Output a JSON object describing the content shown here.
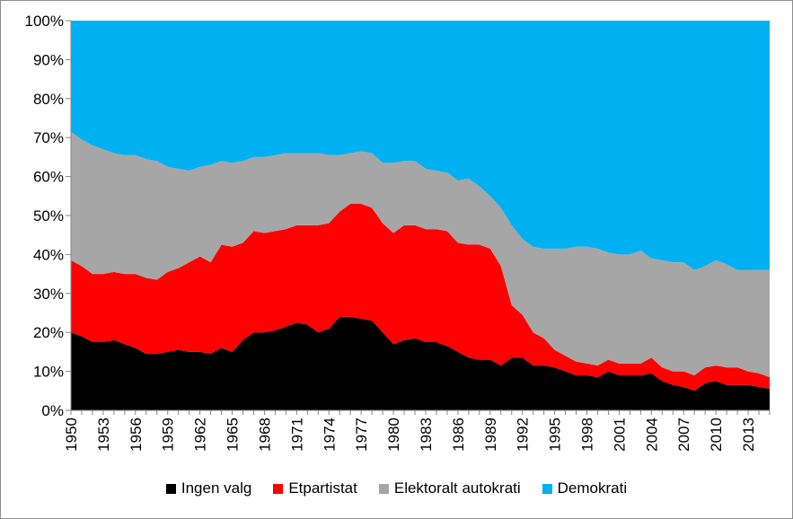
{
  "chart_data": {
    "type": "area",
    "stacked": true,
    "normalized": true,
    "x": [
      1950,
      1951,
      1952,
      1953,
      1954,
      1955,
      1956,
      1957,
      1958,
      1959,
      1960,
      1961,
      1962,
      1963,
      1964,
      1965,
      1966,
      1967,
      1968,
      1969,
      1970,
      1971,
      1972,
      1973,
      1974,
      1975,
      1976,
      1977,
      1978,
      1979,
      1980,
      1981,
      1982,
      1983,
      1984,
      1985,
      1986,
      1987,
      1988,
      1989,
      1990,
      1991,
      1992,
      1993,
      1994,
      1995,
      1996,
      1997,
      1998,
      1999,
      2000,
      2001,
      2002,
      2003,
      2004,
      2005,
      2006,
      2007,
      2008,
      2009,
      2010,
      2011,
      2012,
      2013,
      2014,
      2015
    ],
    "x_tick_labels": [
      "1950",
      "1953",
      "1956",
      "1959",
      "1962",
      "1965",
      "1968",
      "1971",
      "1974",
      "1977",
      "1980",
      "1983",
      "1986",
      "1989",
      "1992",
      "1995",
      "1998",
      "2001",
      "2004",
      "2007",
      "2010",
      "2013"
    ],
    "y_tick_labels": [
      "0%",
      "10%",
      "20%",
      "30%",
      "40%",
      "50%",
      "60%",
      "70%",
      "80%",
      "90%",
      "100%"
    ],
    "ylim": [
      0,
      100
    ],
    "grid": false,
    "legend_position": "bottom",
    "series": [
      {
        "name": "Ingen valg",
        "color": "#000000",
        "cumulative_top": [
          20,
          19,
          17.5,
          17.5,
          18,
          17,
          16,
          14.5,
          14.5,
          15,
          15.5,
          15,
          15,
          14.5,
          16,
          15,
          18,
          20,
          20,
          20.5,
          21.5,
          22.5,
          22,
          20,
          21,
          24,
          24,
          23.5,
          23,
          20,
          17,
          18,
          18.5,
          17.5,
          17.5,
          16.5,
          15,
          13.5,
          13,
          13,
          11.5,
          13.5,
          13.5,
          11.5,
          11.5,
          11,
          10,
          9,
          9,
          8.5,
          10,
          9,
          9,
          9,
          9.5,
          7.5,
          6.5,
          6,
          5,
          7,
          7.5,
          6.5,
          6.5,
          6.5,
          6,
          5.5
        ]
      },
      {
        "name": "Etpartistat",
        "color": "#ff0000",
        "cumulative_top": [
          38.5,
          37,
          35,
          35,
          35.5,
          35,
          35,
          34,
          33.5,
          35.5,
          36.5,
          38,
          39.5,
          38,
          42.5,
          42,
          43,
          46,
          45.5,
          46,
          46.5,
          47.5,
          47.5,
          47.5,
          48,
          51,
          53,
          53,
          52,
          48,
          45.5,
          47.5,
          47.5,
          46.5,
          46.5,
          46,
          43,
          42.5,
          42.5,
          41.5,
          37,
          27,
          24.5,
          20,
          18.5,
          15.5,
          14,
          12.5,
          12,
          11.5,
          13,
          12,
          12,
          12,
          13.5,
          11,
          10,
          10,
          9,
          11,
          11.5,
          11,
          11,
          10,
          9.5,
          8.5
        ]
      },
      {
        "name": "Elektoralt autokrati",
        "color": "#a6a6a6",
        "cumulative_top": [
          71.5,
          69.5,
          68,
          67,
          66,
          65.5,
          65.5,
          64.5,
          64,
          62.5,
          62,
          61.5,
          62.5,
          63,
          64,
          63.5,
          64,
          65,
          65,
          65.5,
          66,
          66,
          66,
          66,
          65.5,
          65.5,
          66,
          66.5,
          66,
          63.5,
          63.5,
          64,
          64,
          62,
          61.5,
          61,
          59,
          59.5,
          57.5,
          55,
          52,
          47.5,
          44,
          42,
          41.5,
          41.5,
          41.5,
          42,
          42,
          41.5,
          40.5,
          40,
          40,
          41,
          39,
          38.5,
          38,
          38,
          36,
          37,
          38.5,
          37.5,
          36,
          36,
          36,
          36
        ]
      },
      {
        "name": "Demokrati",
        "color": "#00b0f0",
        "cumulative_top": [
          100,
          100,
          100,
          100,
          100,
          100,
          100,
          100,
          100,
          100,
          100,
          100,
          100,
          100,
          100,
          100,
          100,
          100,
          100,
          100,
          100,
          100,
          100,
          100,
          100,
          100,
          100,
          100,
          100,
          100,
          100,
          100,
          100,
          100,
          100,
          100,
          100,
          100,
          100,
          100,
          100,
          100,
          100,
          100,
          100,
          100,
          100,
          100,
          100,
          100,
          100,
          100,
          100,
          100,
          100,
          100,
          100,
          100,
          100,
          100,
          100,
          100,
          100,
          100,
          100,
          100
        ]
      }
    ]
  }
}
